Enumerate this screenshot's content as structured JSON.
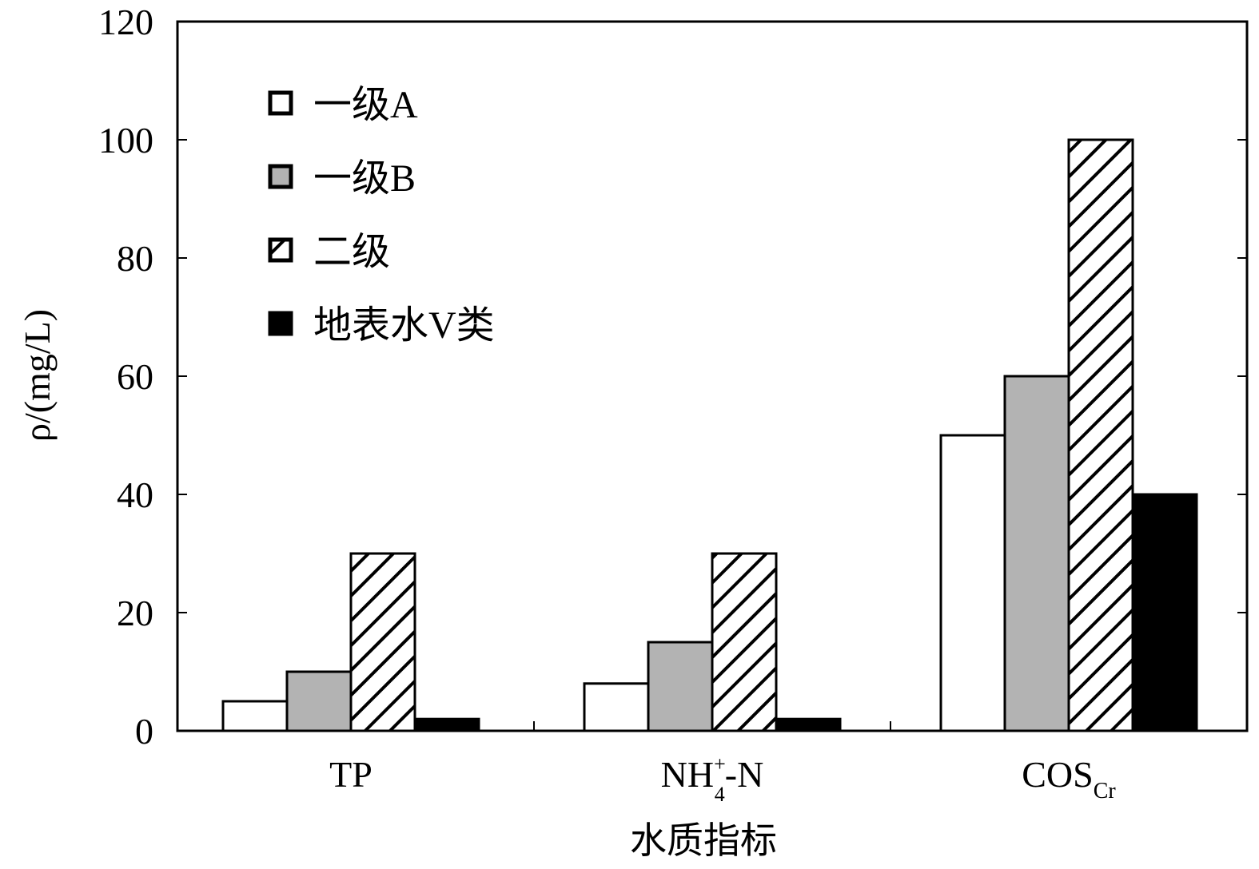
{
  "chart_data": {
    "type": "bar",
    "title": "",
    "xlabel": "水质指标",
    "ylabel": "ρ/(mg/L)",
    "ylim": [
      0,
      120
    ],
    "yticks": [
      0,
      20,
      40,
      60,
      80,
      100,
      120
    ],
    "categories": [
      {
        "main": "TP",
        "sup": "",
        "sub": ""
      },
      {
        "main": "NH",
        "sup": "+",
        "sub": "4",
        "tail": "-N"
      },
      {
        "main": "COS",
        "sup": "",
        "sub": "Cr"
      }
    ],
    "series": [
      {
        "name": "一级A",
        "fill": "white",
        "values": [
          5,
          8,
          50
        ]
      },
      {
        "name": "一级B",
        "fill": "gray",
        "values": [
          10,
          15,
          60
        ]
      },
      {
        "name": "二级",
        "fill": "hatch",
        "values": [
          30,
          30,
          100
        ]
      },
      {
        "name": "地表水V类",
        "fill": "black",
        "values": [
          2,
          2,
          40
        ]
      }
    ],
    "legend": "top-left",
    "grid": false
  }
}
